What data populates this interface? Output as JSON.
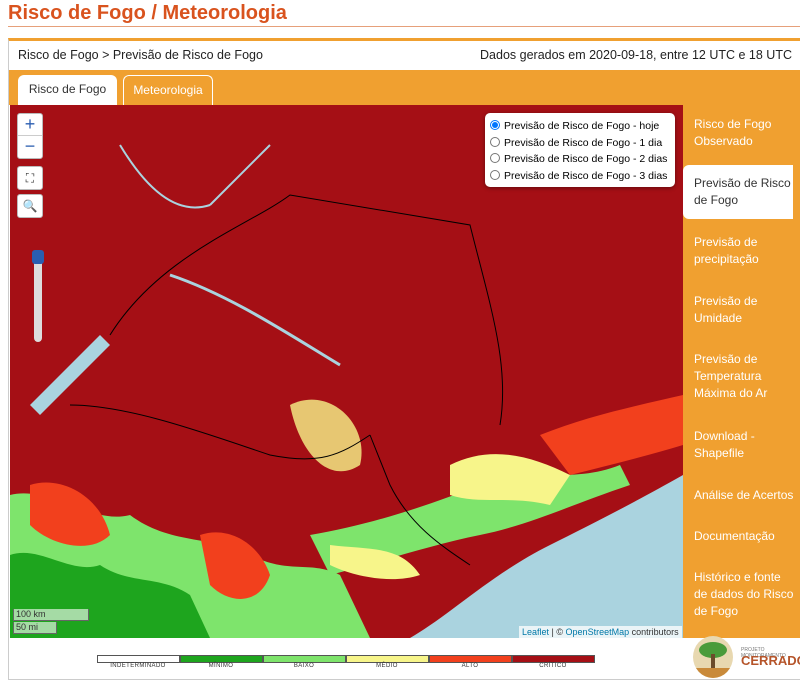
{
  "header": {
    "title": "Risco de Fogo / Meteorologia"
  },
  "panel": {
    "breadcrumb": "Risco de Fogo > Previsão de Risco de Fogo",
    "generated": "Dados gerados em 2020-09-18, entre 12 UTC e 18 UTC"
  },
  "tabs": [
    "Risco de Fogo",
    "Meteorologia"
  ],
  "menu": [
    "Risco de Fogo Observado",
    "Previsão de Risco de Fogo",
    "Previsão de precipitação",
    "Previsão de Umidade",
    "Previsão de Temperatura Máxima do Ar",
    "Download - Shapefile",
    "Análise de Acertos",
    "Documentação",
    "Histórico e fonte de dados do Risco de Fogo"
  ],
  "layers": [
    "Previsão de Risco de Fogo - hoje",
    "Previsão de Risco de Fogo - 1 dia",
    "Previsão de Risco de Fogo - 2 dias",
    "Previsão de Risco de Fogo - 3 dias"
  ],
  "map": {
    "zoom_in": "+",
    "zoom_out": "−",
    "scale_km": "100 km",
    "scale_mi": "50 mi",
    "leaflet": "Leaflet",
    "separator": "| ©",
    "osm": "OpenStreetMap",
    "contributors": "contributors"
  },
  "legend": [
    {
      "label": "INDETERMINADO",
      "color": "#ffffff"
    },
    {
      "label": "MÍNIMO",
      "color": "#1ea51e"
    },
    {
      "label": "BAIXO",
      "color": "#7ee46c"
    },
    {
      "label": "MÉDIO",
      "color": "#f7f58a"
    },
    {
      "label": "ALTO",
      "color": "#f2401d"
    },
    {
      "label": "CRÍTICO",
      "color": "#a50f15"
    }
  ],
  "logo": {
    "caption": "PROJETO MONITORAMENTO",
    "name": "CERRADO"
  }
}
